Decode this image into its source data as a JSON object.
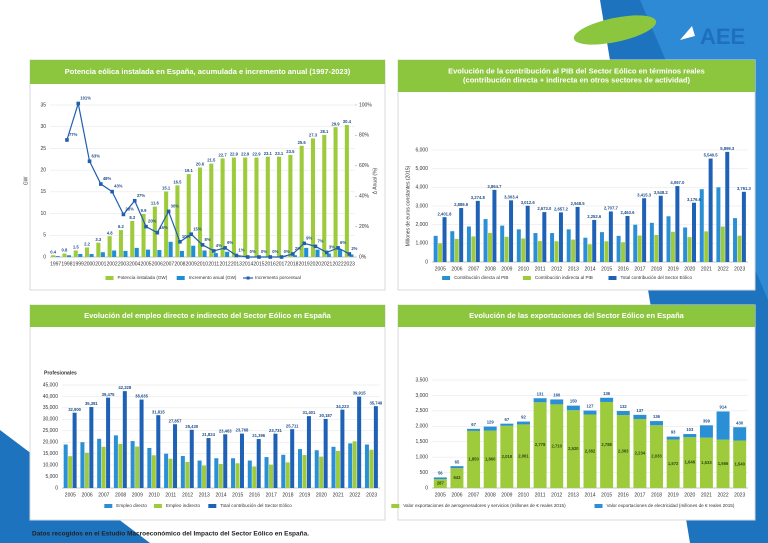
{
  "header": {
    "logo": "AEE"
  },
  "footnote": "Datos recogidos en el Estudio Macroeconómico del Impacto del Sector Eólico en España.",
  "chart_data": [
    {
      "type": "combo",
      "header_color": "#8cc63f",
      "grid": true,
      "title": "Potencia eólica instalada en España, acumulada e incremento anual (1997-2023)",
      "y_label": "GW",
      "y2_label": "Δ Anual (%)",
      "categories": [
        "1997",
        "1998",
        "1999",
        "2000",
        "2001",
        "2002",
        "2003",
        "2004",
        "2005",
        "2006",
        "2007",
        "2008",
        "2009",
        "2010",
        "2011",
        "2012",
        "2013",
        "2014",
        "2015",
        "2016",
        "2017",
        "2018",
        "2019",
        "2020",
        "2021",
        "2022",
        "2023"
      ],
      "ylim": [
        0,
        35
      ],
      "yticks": [
        0,
        5,
        10,
        15,
        20,
        25,
        30,
        35
      ],
      "y2lim": [
        0,
        100
      ],
      "y2ticks": [
        {
          "value": 0,
          "label": "0%"
        },
        {
          "value": 20,
          "label": "20%"
        },
        {
          "value": 40,
          "label": "40%"
        },
        {
          "value": 60,
          "label": "60%"
        },
        {
          "value": 80,
          "label": "80%"
        },
        {
          "value": 100,
          "label": "100%"
        }
      ],
      "series": [
        {
          "name": "Potencia instalada (GW)",
          "color": "#9dcb3c",
          "data_labels": true,
          "values": [
            0.4,
            0.8,
            1.5,
            2.2,
            3.3,
            4.8,
            6.2,
            8.3,
            9.9,
            11.6,
            15.1,
            16.5,
            19.1,
            20.6,
            21.5,
            22.7,
            22.9,
            22.9,
            22.9,
            23.1,
            23.1,
            23.5,
            25.6,
            27.3,
            28.1,
            29.9,
            30.4
          ]
        },
        {
          "name": "Incremento anual (GW)",
          "color": "#1e8fd6",
          "values": [
            0.2,
            0.4,
            0.7,
            0.7,
            1.1,
            1.5,
            1.4,
            2.1,
            1.7,
            1.6,
            3.5,
            1.4,
            2.6,
            1.5,
            0.9,
            1.2,
            0.2,
            0.03,
            0.02,
            0.05,
            0.1,
            0.4,
            2.1,
            1.7,
            0.8,
            1.8,
            0.6
          ]
        },
        {
          "name": "Incremento porcentual",
          "color": "#1f5fad",
          "type": "line",
          "axis": "y2",
          "values": [
            null,
            77,
            101,
            63,
            48,
            43,
            28,
            37,
            20,
            16,
            30,
            10,
            15,
            8,
            4,
            6,
            1,
            0,
            0,
            0,
            0,
            2,
            9,
            7,
            3,
            6,
            2
          ],
          "value_labels": [
            null,
            "77%",
            "101%",
            "63%",
            "48%",
            "43%",
            "28%",
            "37%",
            "20%",
            "16%",
            "30%",
            "10%",
            "15%",
            "8%",
            "4%",
            "6%",
            "1%",
            "0%",
            "0%",
            "0%",
            "0%",
            "2%",
            "9%",
            "7%",
            "3%",
            "6%",
            "2%"
          ]
        }
      ]
    },
    {
      "type": "bar",
      "header_color": "#8cc63f",
      "grid": true,
      "title": [
        "Evolución de la contribución al PIB del Sector Eólico en términos reales",
        "(contribución directa + indirecta en otros sectores de actividad)"
      ],
      "y_label": "Millones de euros constantes (2015)",
      "categories": [
        "2005",
        "2006",
        "2007",
        "2008",
        "2009",
        "2010",
        "2011",
        "2012",
        "2013",
        "2014",
        "2015",
        "2016",
        "2017",
        "2018",
        "2019",
        "2020",
        "2021",
        "2022",
        "2023"
      ],
      "ylim": [
        0,
        6000
      ],
      "yticks": [
        0,
        {
          "value": 1000,
          "label": "1,000"
        },
        {
          "value": 2000,
          "label": "2,000"
        },
        {
          "value": 3000,
          "label": "3,000"
        },
        {
          "value": 4000,
          "label": "4,000"
        },
        {
          "value": 5000,
          "label": "5,000"
        },
        {
          "value": 6000,
          "label": "6,000"
        }
      ],
      "series": [
        {
          "name": "Contribución directa al PIB",
          "color": "#2b8fd6",
          "values": [
            1400,
            1650,
            1900,
            2300,
            1950,
            1750,
            1550,
            1550,
            1750,
            1300,
            1600,
            1400,
            2000,
            2100,
            2450,
            1850,
            3900,
            4000,
            2350
          ]
        },
        {
          "name": "Contribución indirecta al PIB",
          "color": "#9dcb3c",
          "values": [
            1000,
            1240,
            1370,
            1560,
            1350,
            1260,
            1120,
            1110,
            1200,
            950,
            1110,
            1060,
            1420,
            1450,
            1620,
            1330,
            1640,
            1900,
            1410
          ]
        },
        {
          "name": "Total contribución del Sector Eólico",
          "color": "#1f62b5",
          "values": [
            2401.8,
            2889.9,
            3274.8,
            3864.7,
            3303.4,
            3012.6,
            2673.0,
            2657.2,
            2948.5,
            2252.6,
            2707.7,
            2463.6,
            3415.3,
            3548.2,
            4067.0,
            3176.6,
            5540.5,
            5899.3,
            3761.3
          ],
          "value_labels": [
            "2,401.8",
            "2,889.9",
            "3,274.8",
            "3,864.7",
            "3,303.4",
            "3,012.6",
            "2,673.0",
            "2,657.2",
            "2,948.5",
            "2,252.6",
            "2,707.7",
            "2,463.6",
            "3,415.3",
            "3,548.2",
            "4,067.0",
            "3,176.6",
            "5,540.5",
            "5,899.3",
            "3,761.3"
          ]
        }
      ]
    },
    {
      "type": "bar",
      "header_color": "#8cc63f",
      "grid": true,
      "title": "Evolución del empleo directo e indirecto del Sector Eólico en España",
      "unit_label": "Profesionales",
      "categories": [
        "2005",
        "2006",
        "2007",
        "2008",
        "2009",
        "2010",
        "2011",
        "2012",
        "2013",
        "2014",
        "2015",
        "2016",
        "2017",
        "2018",
        "2019",
        "2020",
        "2021",
        "2022",
        "2023"
      ],
      "ylim": [
        0,
        45000
      ],
      "yticks": [
        0,
        {
          "value": 5000,
          "label": "5,000"
        },
        {
          "value": 10000,
          "label": "10,000"
        },
        {
          "value": 15000,
          "label": "15,000"
        },
        {
          "value": 20000,
          "label": "20,000"
        },
        {
          "value": 25000,
          "label": "25,000"
        },
        {
          "value": 30000,
          "label": "30,000"
        },
        {
          "value": 35000,
          "label": "35,000"
        },
        {
          "value": 40000,
          "label": "40,000"
        },
        {
          "value": 45000,
          "label": "45,000"
        }
      ],
      "series": [
        {
          "name": "Empleo directo",
          "color": "#2b8fd6",
          "values": [
            19000,
            20000,
            21500,
            23000,
            20500,
            17500,
            15000,
            14000,
            12000,
            13000,
            13000,
            12000,
            13500,
            14500,
            17000,
            16500,
            18000,
            19500,
            19000
          ]
        },
        {
          "name": "Empleo indirecto",
          "color": "#9dcb3c",
          "values": [
            13900,
            15400,
            18000,
            19300,
            18100,
            14300,
            12800,
            11400,
            9800,
            10500,
            10800,
            9400,
            10200,
            11200,
            14400,
            13700,
            16200,
            20400,
            16700
          ]
        },
        {
          "name": "Total contribución del Sector Eólico",
          "color": "#1f62b5",
          "values": [
            32900,
            35381,
            39475,
            42328,
            38635,
            31815,
            27857,
            25430,
            21824,
            23463,
            23768,
            21396,
            23731,
            25711,
            31401,
            30187,
            34223,
            39915,
            35749
          ],
          "value_labels": [
            "32,900",
            "35,381",
            "39,475",
            "42,328",
            "38,635",
            "31,815",
            "27,857",
            "25,430",
            "21,824",
            "23,463",
            "23,768",
            "21,396",
            "23,731",
            "25,711",
            "31,401",
            "30,187",
            "34,223",
            "39,915",
            "35,749"
          ]
        }
      ]
    },
    {
      "type": "stacked_bar",
      "header_color": "#8cc63f",
      "grid": true,
      "title": "Evolución de las exportaciones del Sector Eólico en España",
      "categories": [
        "2005",
        "2006",
        "2007",
        "2008",
        "2009",
        "2010",
        "2011",
        "2012",
        "2013",
        "2014",
        "2015",
        "2016",
        "2017",
        "2018",
        "2019",
        "2020",
        "2021",
        "2022",
        "2023"
      ],
      "ylim": [
        0,
        3500
      ],
      "yticks": [
        0,
        500,
        {
          "value": 1000,
          "label": "1,000"
        },
        {
          "value": 1500,
          "label": "1,500"
        },
        {
          "value": 2000,
          "label": "2,000"
        },
        {
          "value": 2500,
          "label": "2,500"
        },
        {
          "value": 3000,
          "label": "3,000"
        },
        {
          "value": 3500,
          "label": "3,500"
        }
      ],
      "series": [
        {
          "name": "Valor exportaciones de aerogeneradores y servicios (millones de € reales 2015)",
          "color": "#9dcb3c",
          "values": [
            287,
            643,
            1850,
            1860,
            2018,
            2061,
            2778,
            2710,
            2520,
            2382,
            2788,
            2363,
            2234,
            2033,
            1572,
            1646,
            1633,
            1566,
            1540
          ],
          "value_labels": [
            "287",
            "643",
            "1,850",
            "1,860",
            "2,018",
            "2,061",
            "2,778",
            "2,710",
            "2,520",
            "2,382",
            "2,788",
            "2,363",
            "2,234",
            "2,033",
            "1,572",
            "1,646",
            "1,633",
            "1,566",
            "1,540"
          ]
        },
        {
          "name": "Valor exportaciones de electricidad (millones de € reales 2015)",
          "color": "#2b8fd6",
          "data_labels": true,
          "values": [
            56,
            65,
            67,
            129,
            67,
            92,
            131,
            160,
            150,
            127,
            136,
            132,
            137,
            136,
            93,
            103,
            399,
            914,
            430
          ]
        }
      ]
    }
  ]
}
